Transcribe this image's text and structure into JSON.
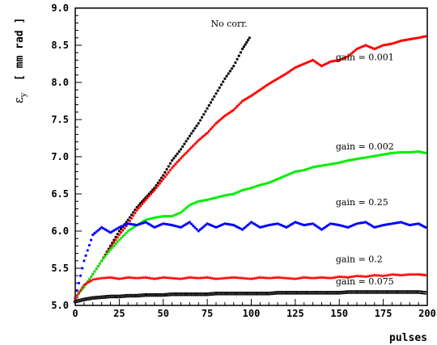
{
  "chart_data": {
    "type": "scatter",
    "title": "",
    "xlabel": "pulses",
    "ylabel": "ε_y [ mm rad ]",
    "ylabel_parts": {
      "symbol": "ε",
      "subscript": "y",
      "units": "[ mm rad ]"
    },
    "xlim": [
      0,
      200
    ],
    "ylim": [
      5.0,
      9.0
    ],
    "x_ticks": [
      "0",
      "25",
      "50",
      "75",
      "100",
      "125",
      "150",
      "175",
      "200"
    ],
    "y_ticks": [
      "5.0",
      "5.5",
      "6.0",
      "6.5",
      "7.0",
      "7.5",
      "8.0",
      "8.5",
      "9.0"
    ],
    "grid": false,
    "annotations": [
      {
        "text": "No corr.",
        "x": 77,
        "y": 8.75
      },
      {
        "text": "gain = 0.001",
        "x": 148,
        "y": 8.3
      },
      {
        "text": "gain = 0.002",
        "x": 148,
        "y": 7.1
      },
      {
        "text": "gain = 0.25",
        "x": 148,
        "y": 6.35
      },
      {
        "text": "gain = 0.2",
        "x": 148,
        "y": 5.58
      },
      {
        "text": "gain = 0.075",
        "x": 148,
        "y": 5.28
      }
    ],
    "series": [
      {
        "color": "#000000",
        "marker": "dot",
        "x": [
          0,
          5,
          10,
          15,
          20,
          25,
          30,
          35,
          40,
          45,
          50,
          55,
          60,
          65,
          70,
          75,
          80,
          85,
          90,
          95,
          99
        ],
        "y": [
          5.1,
          5.25,
          5.42,
          5.6,
          5.8,
          6.0,
          6.15,
          6.32,
          6.45,
          6.58,
          6.75,
          6.95,
          7.1,
          7.28,
          7.45,
          7.65,
          7.85,
          8.05,
          8.22,
          8.45,
          8.6
        ]
      },
      {
        "color": "#ff0000",
        "marker": "dot",
        "x": [
          0,
          5,
          10,
          15,
          20,
          25,
          30,
          35,
          40,
          45,
          50,
          55,
          60,
          65,
          70,
          75,
          80,
          85,
          90,
          95,
          100,
          105,
          110,
          115,
          120,
          125,
          130,
          135,
          140,
          145,
          150,
          155,
          160,
          165,
          170,
          175,
          180,
          185,
          190,
          195,
          199
        ],
        "y": [
          5.1,
          5.25,
          5.42,
          5.6,
          5.78,
          5.95,
          6.1,
          6.28,
          6.42,
          6.55,
          6.7,
          6.85,
          6.98,
          7.1,
          7.22,
          7.32,
          7.45,
          7.55,
          7.63,
          7.75,
          7.82,
          7.9,
          7.98,
          8.05,
          8.12,
          8.2,
          8.25,
          8.3,
          8.22,
          8.28,
          8.3,
          8.35,
          8.45,
          8.5,
          8.45,
          8.5,
          8.52,
          8.56,
          8.58,
          8.6,
          8.62
        ]
      },
      {
        "color": "#00ee00",
        "marker": "dot",
        "x": [
          0,
          5,
          10,
          15,
          20,
          25,
          30,
          35,
          40,
          45,
          50,
          55,
          60,
          65,
          70,
          75,
          80,
          85,
          90,
          95,
          100,
          105,
          110,
          115,
          120,
          125,
          130,
          135,
          140,
          145,
          150,
          155,
          160,
          165,
          170,
          175,
          180,
          185,
          190,
          195,
          199
        ],
        "y": [
          5.1,
          5.25,
          5.42,
          5.6,
          5.75,
          5.88,
          6.0,
          6.08,
          6.15,
          6.18,
          6.2,
          6.2,
          6.25,
          6.35,
          6.4,
          6.42,
          6.45,
          6.48,
          6.5,
          6.55,
          6.58,
          6.62,
          6.65,
          6.7,
          6.75,
          6.8,
          6.82,
          6.86,
          6.88,
          6.9,
          6.92,
          6.95,
          6.97,
          6.99,
          7.01,
          7.03,
          7.05,
          7.06,
          7.06,
          7.07,
          7.05
        ]
      },
      {
        "color": "#0000ff",
        "marker": "dot",
        "x": [
          0,
          5,
          10,
          15,
          20,
          25,
          30,
          35,
          40,
          45,
          50,
          55,
          60,
          65,
          70,
          75,
          80,
          85,
          90,
          95,
          100,
          105,
          110,
          115,
          120,
          125,
          130,
          135,
          140,
          145,
          150,
          155,
          160,
          165,
          170,
          175,
          180,
          185,
          190,
          195,
          199
        ],
        "y": [
          5.1,
          5.6,
          5.95,
          6.05,
          5.98,
          6.05,
          6.1,
          6.08,
          6.12,
          6.05,
          6.1,
          6.08,
          6.05,
          6.12,
          6.0,
          6.1,
          6.05,
          6.1,
          6.08,
          6.02,
          6.12,
          6.05,
          6.08,
          6.1,
          6.05,
          6.12,
          6.08,
          6.1,
          6.02,
          6.1,
          6.08,
          6.05,
          6.1,
          6.12,
          6.05,
          6.08,
          6.1,
          6.12,
          6.08,
          6.1,
          6.05
        ]
      },
      {
        "color": "#ff0000",
        "marker": "triangle",
        "x": [
          0,
          5,
          10,
          15,
          20,
          25,
          30,
          35,
          40,
          45,
          50,
          55,
          60,
          65,
          70,
          75,
          80,
          85,
          90,
          95,
          100,
          105,
          110,
          115,
          120,
          125,
          130,
          135,
          140,
          145,
          150,
          155,
          160,
          165,
          170,
          175,
          180,
          185,
          190,
          195,
          199
        ],
        "y": [
          5.1,
          5.28,
          5.35,
          5.37,
          5.38,
          5.36,
          5.38,
          5.37,
          5.38,
          5.36,
          5.38,
          5.37,
          5.36,
          5.38,
          5.37,
          5.38,
          5.36,
          5.37,
          5.38,
          5.37,
          5.36,
          5.38,
          5.37,
          5.38,
          5.37,
          5.36,
          5.38,
          5.37,
          5.38,
          5.37,
          5.39,
          5.38,
          5.4,
          5.39,
          5.41,
          5.4,
          5.42,
          5.41,
          5.42,
          5.42,
          5.41
        ]
      },
      {
        "color": "#000000",
        "marker": "open-circle",
        "x": [
          0,
          5,
          10,
          15,
          20,
          25,
          30,
          35,
          40,
          45,
          50,
          55,
          60,
          65,
          70,
          75,
          80,
          85,
          90,
          95,
          100,
          105,
          110,
          115,
          120,
          125,
          130,
          135,
          140,
          145,
          150,
          155,
          160,
          165,
          170,
          175,
          180,
          185,
          190,
          195,
          199
        ],
        "y": [
          5.05,
          5.08,
          5.1,
          5.11,
          5.12,
          5.12,
          5.13,
          5.13,
          5.14,
          5.14,
          5.14,
          5.15,
          5.15,
          5.15,
          5.15,
          5.15,
          5.16,
          5.16,
          5.16,
          5.16,
          5.16,
          5.16,
          5.16,
          5.17,
          5.17,
          5.17,
          5.17,
          5.17,
          5.17,
          5.17,
          5.17,
          5.18,
          5.18,
          5.18,
          5.18,
          5.18,
          5.18,
          5.18,
          5.18,
          5.18,
          5.17
        ]
      }
    ]
  }
}
